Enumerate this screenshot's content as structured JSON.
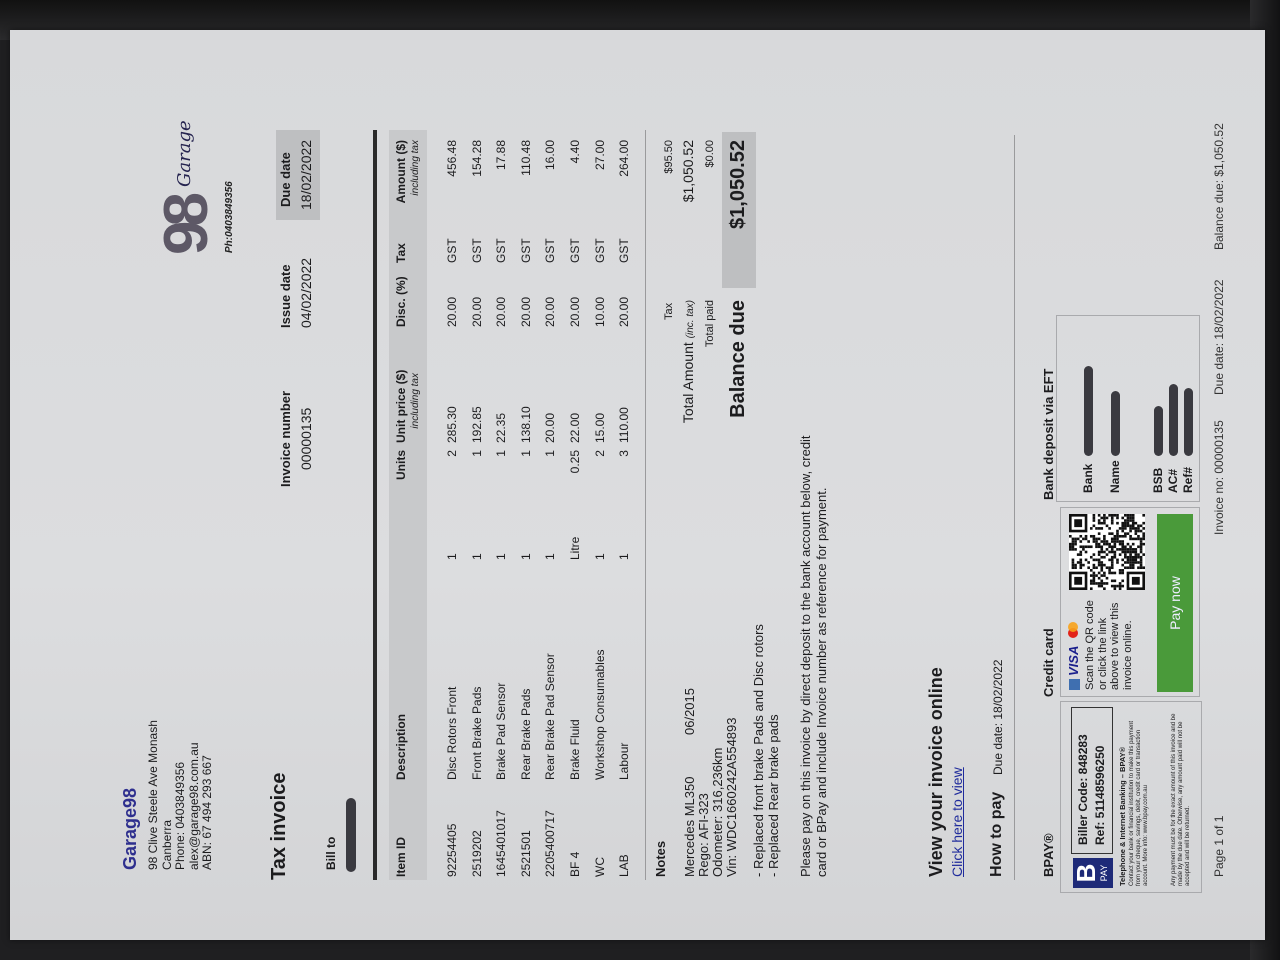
{
  "business": {
    "name": "Garage98",
    "address_lines": [
      "98 Clive Steele Ave Monash",
      "Canberra",
      "Phone: 0403849356",
      "alex@garage98.com.au",
      "ABN: 67 494 293 667"
    ]
  },
  "logo": {
    "digits": "98",
    "script": "Garage",
    "phone": "Ph:0403849356"
  },
  "document": {
    "title": "Tax invoice",
    "invoice_number_label": "Invoice number",
    "invoice_number": "00000135",
    "issue_date_label": "Issue date",
    "issue_date": "04/02/2022",
    "due_date_label": "Due date",
    "due_date": "18/02/2022",
    "bill_to_label": "Bill to"
  },
  "table": {
    "headers": {
      "item_id": "Item ID",
      "description": "Description",
      "qty": "",
      "units": "Units",
      "unit_price": "Unit price ($)",
      "unit_price_sub": "including tax",
      "disc": "Disc. (%)",
      "tax": "Tax",
      "amount": "Amount ($)",
      "amount_sub": "including tax"
    },
    "rows": [
      {
        "item_id": "92254405",
        "description": "Disc Rotors Front",
        "qty": "1",
        "units": "2",
        "unit_price": "285.30",
        "disc": "20.00",
        "tax": "GST",
        "amount": "456.48"
      },
      {
        "item_id": "2519202",
        "description": "Front Brake Pads",
        "qty": "1",
        "units": "1",
        "unit_price": "192.85",
        "disc": "20.00",
        "tax": "GST",
        "amount": "154.28"
      },
      {
        "item_id": "1645401017",
        "description": "Brake Pad Sensor",
        "qty": "1",
        "units": "1",
        "unit_price": "22.35",
        "disc": "20.00",
        "tax": "GST",
        "amount": "17.88"
      },
      {
        "item_id": "2521501",
        "description": "Rear Brake Pads",
        "qty": "1",
        "units": "1",
        "unit_price": "138.10",
        "disc": "20.00",
        "tax": "GST",
        "amount": "110.48"
      },
      {
        "item_id": "2205400717",
        "description": "Rear Brake Pad Sensor",
        "qty": "1",
        "units": "1",
        "unit_price": "20.00",
        "disc": "20.00",
        "tax": "GST",
        "amount": "16.00"
      },
      {
        "item_id": "BF 4",
        "description": "Brake Fluid",
        "qty": "Litre",
        "units": "0.25",
        "unit_price": "22.00",
        "disc": "20.00",
        "tax": "GST",
        "amount": "4.40"
      },
      {
        "item_id": "WC",
        "description": "Workshop Consumables",
        "qty": "1",
        "units": "2",
        "unit_price": "15.00",
        "disc": "10.00",
        "tax": "GST",
        "amount": "27.00"
      },
      {
        "item_id": "LAB",
        "description": "Labour",
        "qty": "1",
        "units": "3",
        "unit_price": "110.00",
        "disc": "20.00",
        "tax": "GST",
        "amount": "264.00"
      }
    ]
  },
  "totals": {
    "tax_label": "Tax",
    "tax": "$95.50",
    "total_label": "Total Amount",
    "total_sub": "(inc. tax)",
    "total": "$1,050.52",
    "paid_label": "Total paid",
    "paid": "$0.00",
    "balance_label": "Balance due",
    "balance": "$1,050.52"
  },
  "notes": {
    "label": "Notes",
    "vehicle": "Mercedes ML350",
    "vehicle_date": "06/2015",
    "rego": "Rego: AFI-323",
    "odometer": "Odometer: 316,236km",
    "vin": "Vin: WDC1660242A554893",
    "work_lines": [
      "- Replaced front brake Pads and Disc rotors",
      "- Replaced Rear brake pads"
    ],
    "payment_lines": [
      "Please pay on this invoice by direct deposit to the bank account below, credit",
      "card or BPay  and include Invoice number as reference for payment."
    ]
  },
  "online": {
    "heading": "View your invoice online",
    "link": "Click here to view"
  },
  "how_to_pay": {
    "heading": "How to pay",
    "due": "Due date: 18/02/2022"
  },
  "bpay": {
    "label": "BPAY®",
    "logo_text": "PAY",
    "biller_code": "Biller Code:  848283",
    "ref": "Ref:  51148596250",
    "phone_heading": "Telephone & Internet Banking – BPAY®",
    "phone_text": "Contact your bank or financial institution to make this payment from your cheque, savings, debit, credit card or transaction account. More info: www.bpay.com.au",
    "note_text": "Any payment must be for the exact amount of this invoice and be made by the due date. Otherwise, any amount paid will not be accepted and will be returned."
  },
  "credit_card": {
    "label": "Credit card",
    "visa": "VISA",
    "scan_text": "Scan the QR code or click the link above to view this invoice online.",
    "pay_button": "Pay now",
    "colors": {
      "pay_button": "#4a9a3a",
      "visa": "#1a1f8c",
      "mastercard_red": "#e2231a",
      "mastercard_orange": "#f7a21b"
    }
  },
  "bank": {
    "label": "Bank deposit via EFT",
    "fields": {
      "bank": "Bank",
      "name": "Name",
      "bsb": "BSB",
      "ac": "AC#",
      "ref": "Ref#"
    }
  },
  "footer": {
    "page": "Page 1 of 1",
    "invoice_no": "Invoice no: 00000135",
    "due": "Due date: 18/02/2022",
    "balance": "Balance due: $1,050.52"
  },
  "colors": {
    "brand": "#2e2f8e",
    "link": "#1f2b9c"
  }
}
